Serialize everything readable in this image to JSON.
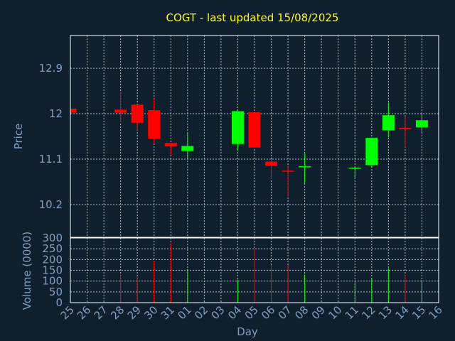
{
  "chart_data": {
    "type": "candlestick",
    "title": "COGT - last updated 15/08/2025",
    "xlabel": "Day",
    "ylabel_price": "Price",
    "ylabel_volume": "Volume (0000)",
    "price_ylim": [
      9.55,
      13.55
    ],
    "price_ticks": [
      "12.9",
      "12",
      "11.1",
      "10.2"
    ],
    "price_tick_values": [
      12.9,
      12.0,
      11.1,
      10.2
    ],
    "volume_ylim": [
      0,
      300
    ],
    "volume_ticks": [
      "300",
      "250",
      "200",
      "150",
      "100",
      "50",
      "0"
    ],
    "volume_tick_values": [
      300,
      250,
      200,
      150,
      100,
      50,
      0
    ],
    "x_labels": [
      "25",
      "26",
      "27",
      "28",
      "29",
      "30",
      "31",
      "01",
      "02",
      "03",
      "04",
      "05",
      "06",
      "07",
      "08",
      "09",
      "10",
      "11",
      "12",
      "13",
      "14",
      "15",
      "16"
    ],
    "grid": true,
    "up_color": "#00ff00",
    "down_color": "#ff0000",
    "candles": [
      {
        "x": "25",
        "open": 12.1,
        "high": 12.1,
        "low": 12.02,
        "close": 12.02,
        "volume": 0
      },
      {
        "x": "28",
        "open": 12.08,
        "high": 12.43,
        "low": 11.83,
        "close": 12.02,
        "volume": 130
      },
      {
        "x": "29",
        "open": 12.18,
        "high": 12.18,
        "low": 11.67,
        "close": 11.82,
        "volume": 120
      },
      {
        "x": "30",
        "open": 12.07,
        "high": 12.29,
        "low": 11.42,
        "close": 11.5,
        "volume": 195
      },
      {
        "x": "31",
        "open": 11.42,
        "high": 11.42,
        "low": 11.18,
        "close": 11.35,
        "volume": 275
      },
      {
        "x": "01",
        "open": 11.26,
        "high": 11.62,
        "low": 11.09,
        "close": 11.36,
        "volume": 150
      },
      {
        "x": "04",
        "open": 11.4,
        "high": 12.07,
        "low": 11.27,
        "close": 12.05,
        "volume": 105
      },
      {
        "x": "05",
        "open": 12.03,
        "high": 12.03,
        "low": 11.32,
        "close": 11.33,
        "volume": 250
      },
      {
        "x": "06",
        "open": 11.05,
        "high": 11.1,
        "low": 10.7,
        "close": 10.97,
        "volume": 175
      },
      {
        "x": "07",
        "open": 10.87,
        "high": 10.97,
        "low": 10.36,
        "close": 10.85,
        "volume": 175
      },
      {
        "x": "08",
        "open": 10.95,
        "high": 11.21,
        "low": 10.62,
        "close": 10.96,
        "volume": 130
      },
      {
        "x": "11",
        "open": 10.91,
        "high": 10.95,
        "low": 10.72,
        "close": 10.93,
        "volume": 95
      },
      {
        "x": "12",
        "open": 10.98,
        "high": 11.53,
        "low": 10.93,
        "close": 11.52,
        "volume": 115
      },
      {
        "x": "13",
        "open": 11.67,
        "high": 12.22,
        "low": 11.53,
        "close": 11.97,
        "volume": 160
      },
      {
        "x": "14",
        "open": 11.72,
        "high": 11.95,
        "low": 11.33,
        "close": 11.69,
        "volume": 130
      },
      {
        "x": "15",
        "open": 11.73,
        "high": 12.03,
        "low": 11.62,
        "close": 11.87,
        "volume": 105
      }
    ]
  }
}
